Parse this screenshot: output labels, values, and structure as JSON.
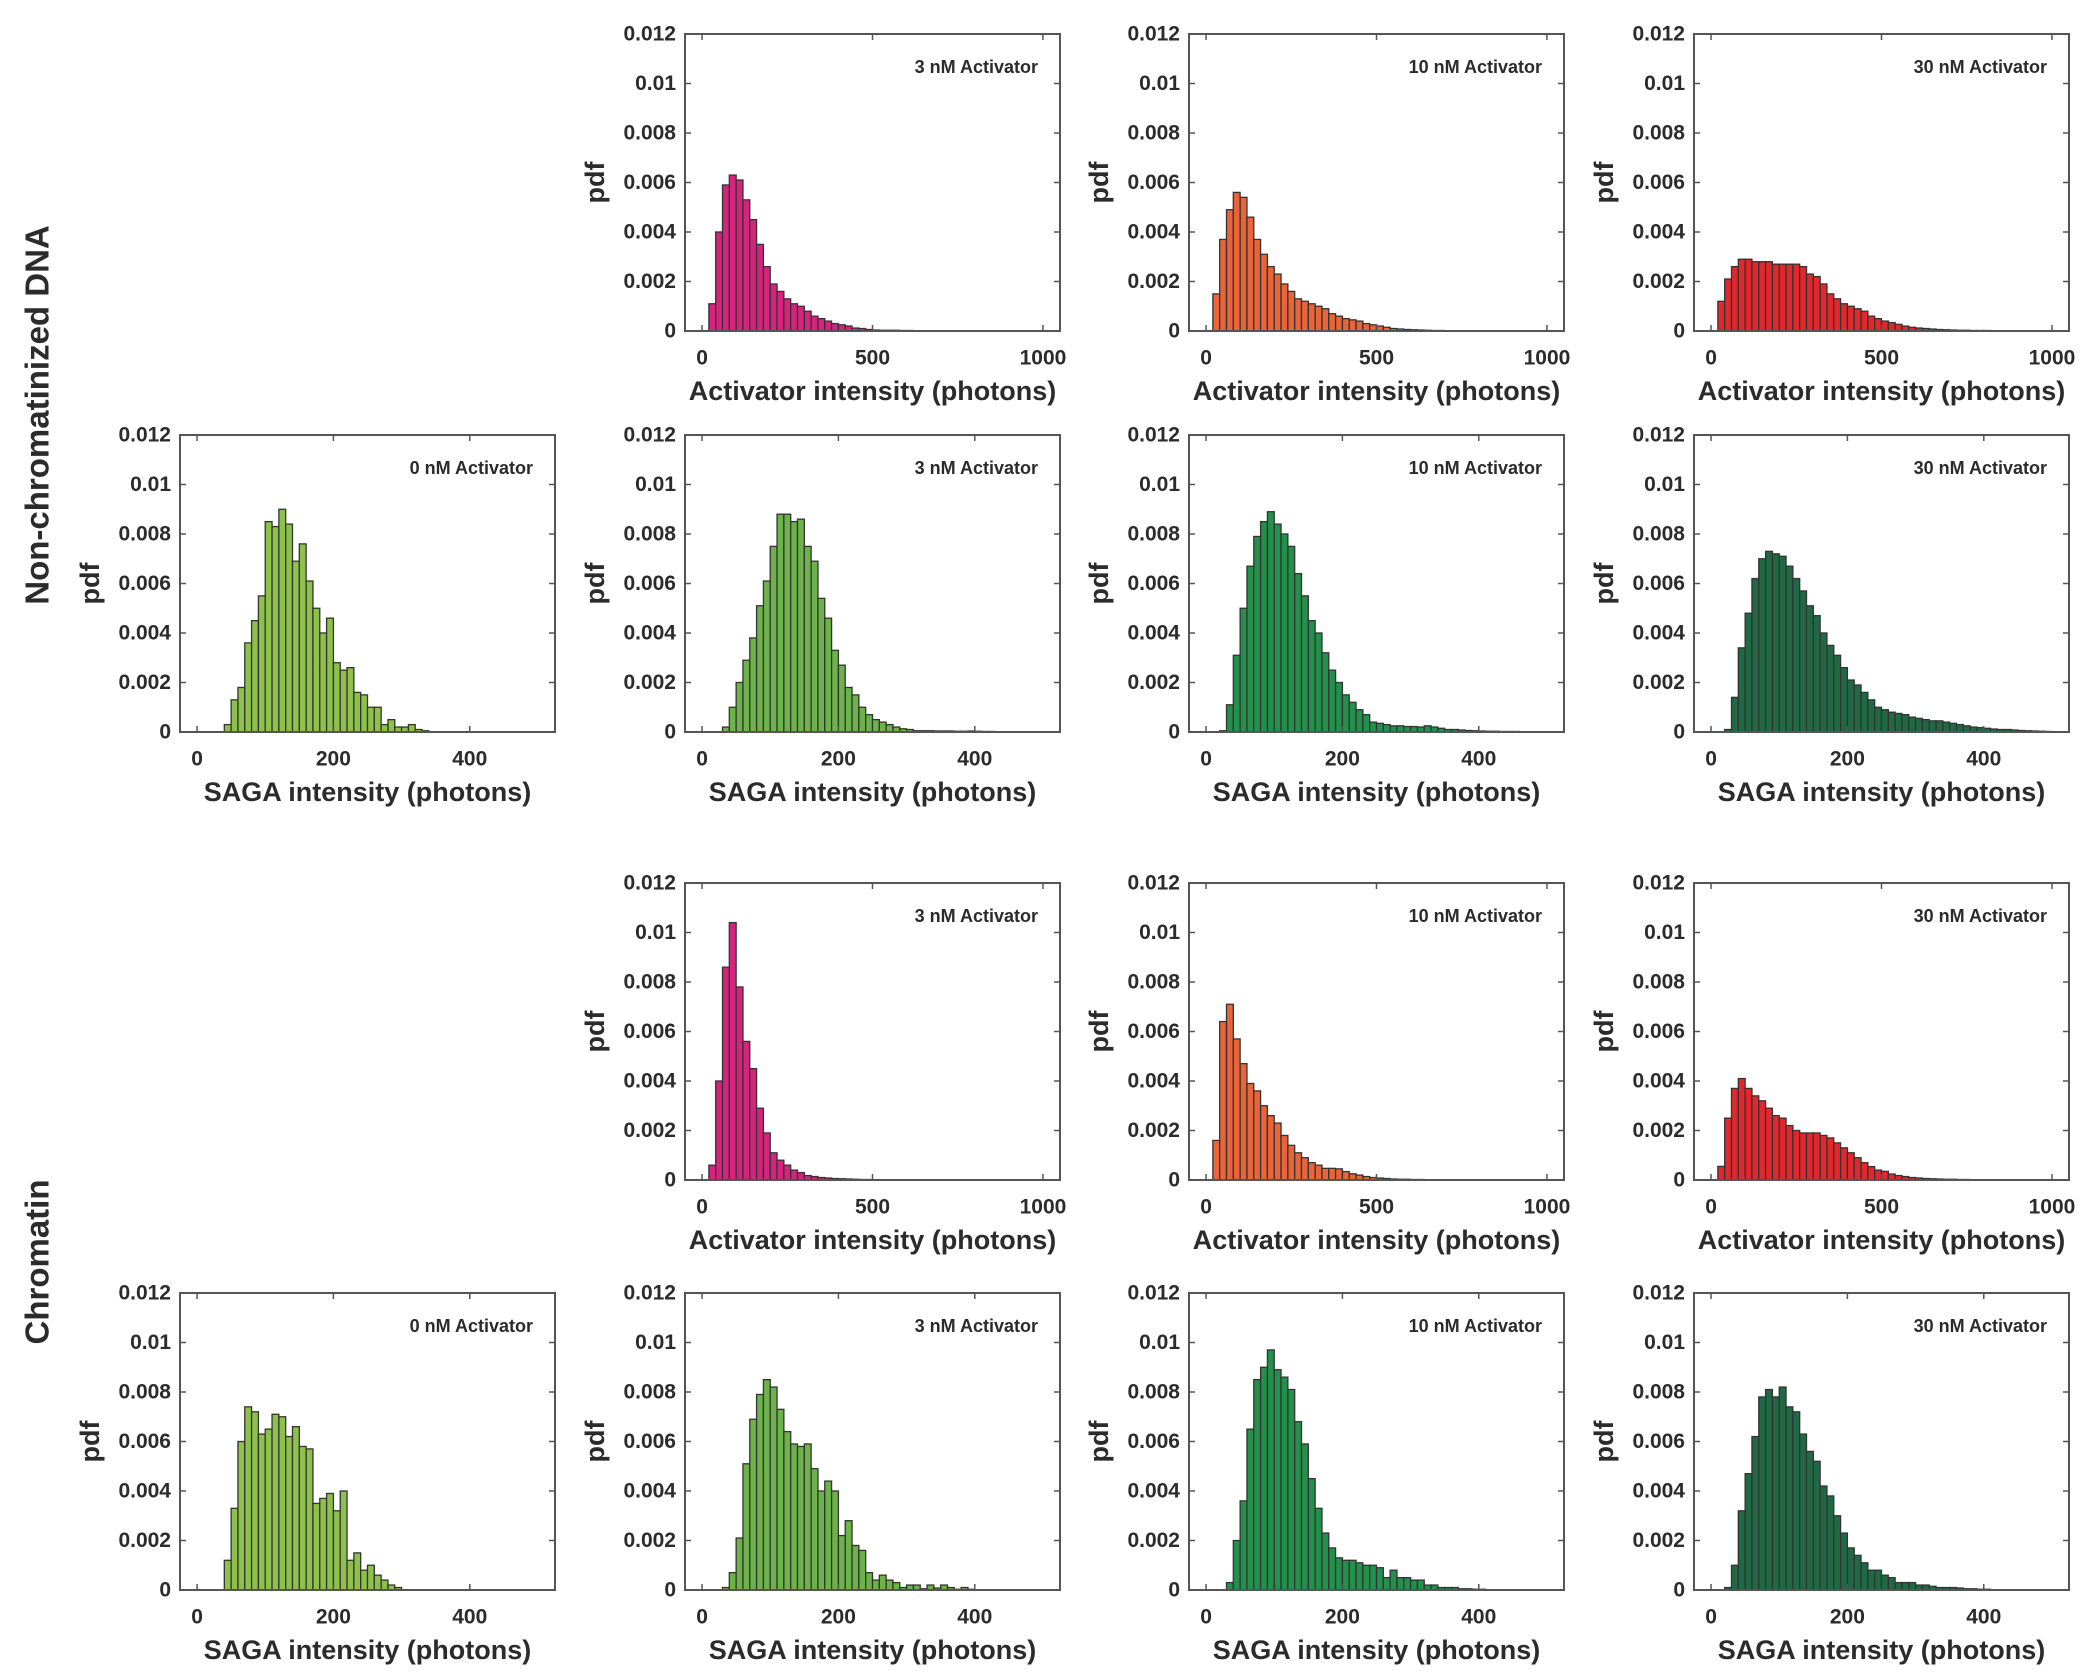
{
  "row_labels": [
    "Non-chromatinized DNA",
    "Chromatin"
  ],
  "colors": {
    "activator_3nM": "#d6237d",
    "activator_10nM": "#ea6439",
    "activator_30nM": "#e2282d",
    "saga_0nM": "#8dc14b",
    "saga_3nM": "#6cb34a",
    "saga_10nM": "#23904b",
    "saga_30nM": "#1f6a45",
    "edge": "#333333",
    "axis": "#555555"
  },
  "chart_data": [
    {
      "type": "bar",
      "group": "Non-chromatinized DNA",
      "row": 0,
      "col": 1,
      "annotation": "3 nM Activator",
      "xlabel": "Activator intensity (photons)",
      "ylabel": "pdf",
      "xlim": [
        -50,
        1050
      ],
      "ylim": [
        0,
        0.012
      ],
      "xticks": [
        "0",
        "500",
        "1000"
      ],
      "yticks": [
        "0",
        "0.002",
        "0.004",
        "0.006",
        "0.008",
        "0.01",
        "0.012"
      ],
      "bin_start": 20,
      "bin_width": 20,
      "color_key": "activator_3nM",
      "values": [
        0.0011,
        0.004,
        0.0059,
        0.0063,
        0.0061,
        0.0053,
        0.0045,
        0.0035,
        0.0026,
        0.0019,
        0.0016,
        0.0013,
        0.0011,
        0.001,
        0.0008,
        0.0006,
        0.0005,
        0.0004,
        0.0003,
        0.00025,
        0.0002,
        0.00012,
        0.0001,
        6e-05,
        4e-05,
        3e-05,
        3e-05,
        3e-05,
        2e-05,
        2e-05,
        1e-05,
        1e-05,
        1e-05
      ]
    },
    {
      "type": "bar",
      "group": "Non-chromatinized DNA",
      "row": 0,
      "col": 2,
      "annotation": "10 nM Activator",
      "xlabel": "Activator intensity (photons)",
      "ylabel": "pdf",
      "xlim": [
        -50,
        1050
      ],
      "ylim": [
        0,
        0.012
      ],
      "xticks": [
        "0",
        "500",
        "1000"
      ],
      "yticks": [
        "0",
        "0.002",
        "0.004",
        "0.006",
        "0.008",
        "0.01",
        "0.012"
      ],
      "bin_start": 20,
      "bin_width": 20,
      "color_key": "activator_10nM",
      "values": [
        0.0015,
        0.0037,
        0.0049,
        0.0056,
        0.0054,
        0.0046,
        0.0037,
        0.0031,
        0.0026,
        0.0023,
        0.0019,
        0.0016,
        0.0013,
        0.0012,
        0.0011,
        0.001,
        0.0009,
        0.0007,
        0.0006,
        0.0005,
        0.00045,
        0.0004,
        0.0003,
        0.00025,
        0.0002,
        0.00015,
        0.0001,
        8e-05,
        6e-05,
        5e-05,
        4e-05,
        3e-05,
        2e-05,
        2e-05,
        1e-05
      ]
    },
    {
      "type": "bar",
      "group": "Non-chromatinized DNA",
      "row": 0,
      "col": 3,
      "annotation": "30 nM Activator",
      "xlabel": "Activator intensity (photons)",
      "ylabel": "pdf",
      "xlim": [
        -50,
        1050
      ],
      "ylim": [
        0,
        0.012
      ],
      "xticks": [
        "0",
        "500",
        "1000"
      ],
      "yticks": [
        "0",
        "0.002",
        "0.004",
        "0.006",
        "0.008",
        "0.01",
        "0.012"
      ],
      "bin_start": 20,
      "bin_width": 20,
      "color_key": "activator_30nM",
      "values": [
        0.0012,
        0.0021,
        0.0026,
        0.0029,
        0.0029,
        0.0028,
        0.0028,
        0.0028,
        0.0027,
        0.0027,
        0.0027,
        0.0027,
        0.0026,
        0.0023,
        0.0022,
        0.0019,
        0.0015,
        0.0013,
        0.0011,
        0.001,
        0.0009,
        0.0008,
        0.0006,
        0.0005,
        0.0004,
        0.00034,
        0.00027,
        0.0002,
        0.00015,
        0.00012,
        0.0001,
        8e-05,
        6e-05,
        5e-05,
        4e-05,
        3e-05,
        3e-05,
        2e-05,
        2e-05,
        2e-05
      ]
    },
    {
      "type": "bar",
      "group": "Non-chromatinized DNA",
      "row": 1,
      "col": 0,
      "annotation": "0 nM Activator",
      "xlabel": "SAGA intensity (photons)",
      "ylabel": "pdf",
      "xlim": [
        -25,
        525
      ],
      "ylim": [
        0,
        0.012
      ],
      "xticks": [
        "0",
        "200",
        "400"
      ],
      "yticks": [
        "0",
        "0.002",
        "0.004",
        "0.006",
        "0.008",
        "0.01",
        "0.012"
      ],
      "bin_start": 40,
      "bin_width": 10,
      "color_key": "saga_0nM",
      "values": [
        0.0003,
        0.0013,
        0.0018,
        0.0036,
        0.0045,
        0.0055,
        0.0085,
        0.0083,
        0.009,
        0.0084,
        0.0069,
        0.0076,
        0.0061,
        0.005,
        0.004,
        0.0046,
        0.0028,
        0.0025,
        0.0026,
        0.0016,
        0.0015,
        0.001,
        0.001,
        0.0003,
        0.0005,
        0.0002,
        0.0002,
        0.0003,
        0.0001,
        5e-05
      ]
    },
    {
      "type": "bar",
      "group": "Non-chromatinized DNA",
      "row": 1,
      "col": 1,
      "annotation": "3 nM Activator",
      "xlabel": "SAGA intensity (photons)",
      "ylabel": "pdf",
      "xlim": [
        -25,
        525
      ],
      "ylim": [
        0,
        0.012
      ],
      "xticks": [
        "0",
        "200",
        "400"
      ],
      "yticks": [
        "0",
        "0.002",
        "0.004",
        "0.006",
        "0.008",
        "0.01",
        "0.012"
      ],
      "bin_start": 30,
      "bin_width": 10,
      "color_key": "saga_3nM",
      "values": [
        0.0002,
        0.001,
        0.002,
        0.0029,
        0.0038,
        0.0051,
        0.0061,
        0.0075,
        0.0088,
        0.0088,
        0.0085,
        0.0086,
        0.0075,
        0.0069,
        0.0054,
        0.0046,
        0.0033,
        0.0027,
        0.0018,
        0.0015,
        0.001,
        0.0007,
        0.0005,
        0.0004,
        0.0003,
        0.0002,
        0.00013,
        0.0001,
        5e-05,
        5e-05,
        5e-05,
        4e-05,
        4e-05,
        4e-05,
        3e-05,
        3e-05,
        4e-05,
        3e-05,
        2e-05,
        2e-05
      ]
    },
    {
      "type": "bar",
      "group": "Non-chromatinized DNA",
      "row": 1,
      "col": 2,
      "annotation": "10 nM Activator",
      "xlabel": "SAGA intensity (photons)",
      "ylabel": "pdf",
      "xlim": [
        -25,
        525
      ],
      "ylim": [
        0,
        0.012
      ],
      "xticks": [
        "0",
        "200",
        "400"
      ],
      "yticks": [
        "0",
        "0.002",
        "0.004",
        "0.006",
        "0.008",
        "0.01",
        "0.012"
      ],
      "bin_start": 20,
      "bin_width": 10,
      "color_key": "saga_10nM",
      "values": [
        5e-05,
        0.0011,
        0.0031,
        0.005,
        0.0067,
        0.0079,
        0.0085,
        0.0089,
        0.0084,
        0.008,
        0.0075,
        0.0064,
        0.0055,
        0.0045,
        0.004,
        0.0032,
        0.0025,
        0.002,
        0.0015,
        0.0012,
        0.0009,
        0.0007,
        0.0004,
        0.00035,
        0.0003,
        0.00025,
        0.00025,
        0.00022,
        0.00022,
        0.0002,
        0.00025,
        0.0002,
        0.00015,
        0.0001,
        0.0001,
        8e-05,
        6e-05,
        5e-05,
        4e-05,
        3e-05,
        3e-05,
        2e-05,
        2e-05,
        2e-05,
        1e-05,
        1e-05,
        1e-05,
        1e-05
      ]
    },
    {
      "type": "bar",
      "group": "Non-chromatinized DNA",
      "row": 1,
      "col": 3,
      "annotation": "30 nM Activator",
      "xlabel": "SAGA intensity (photons)",
      "ylabel": "pdf",
      "xlim": [
        -25,
        525
      ],
      "ylim": [
        0,
        0.012
      ],
      "xticks": [
        "0",
        "200",
        "400"
      ],
      "yticks": [
        "0",
        "0.002",
        "0.004",
        "0.006",
        "0.008",
        "0.01",
        "0.012"
      ],
      "bin_start": 20,
      "bin_width": 10,
      "color_key": "saga_30nM",
      "values": [
        0.0001,
        0.0014,
        0.0034,
        0.0048,
        0.0062,
        0.007,
        0.0073,
        0.0072,
        0.0071,
        0.0067,
        0.0062,
        0.0057,
        0.0051,
        0.0047,
        0.004,
        0.0035,
        0.0031,
        0.0026,
        0.0021,
        0.0019,
        0.0016,
        0.0013,
        0.001,
        0.0009,
        0.0008,
        0.00075,
        0.0007,
        0.0006,
        0.00055,
        0.0005,
        0.00045,
        0.00045,
        0.0004,
        0.00035,
        0.0003,
        0.00025,
        0.0002,
        0.00018,
        0.00015,
        0.00012,
        0.0001,
        0.0001,
        8e-05,
        6e-05,
        5e-05,
        4e-05,
        3e-05,
        2e-05
      ]
    },
    {
      "type": "bar",
      "group": "Chromatin",
      "row": 2,
      "col": 1,
      "annotation": "3 nM Activator",
      "xlabel": "Activator intensity (photons)",
      "ylabel": "pdf",
      "xlim": [
        -50,
        1050
      ],
      "ylim": [
        0,
        0.012
      ],
      "xticks": [
        "0",
        "500",
        "1000"
      ],
      "yticks": [
        "0",
        "0.002",
        "0.004",
        "0.006",
        "0.008",
        "0.01",
        "0.012"
      ],
      "bin_start": 20,
      "bin_width": 20,
      "color_key": "activator_3nM",
      "values": [
        0.0006,
        0.004,
        0.0086,
        0.0104,
        0.0078,
        0.0056,
        0.0045,
        0.0029,
        0.0019,
        0.0011,
        0.0008,
        0.0006,
        0.0004,
        0.0003,
        0.00018,
        0.00014,
        0.0001,
        8e-05,
        6e-05,
        5e-05,
        4e-05,
        3e-05,
        2e-05,
        2e-05
      ]
    },
    {
      "type": "bar",
      "group": "Chromatin",
      "row": 2,
      "col": 2,
      "annotation": "10 nM Activator",
      "xlabel": "Activator intensity (photons)",
      "ylabel": "pdf",
      "xlim": [
        -50,
        1050
      ],
      "ylim": [
        0,
        0.012
      ],
      "xticks": [
        "0",
        "500",
        "1000"
      ],
      "yticks": [
        "0",
        "0.002",
        "0.004",
        "0.006",
        "0.008",
        "0.01",
        "0.012"
      ],
      "bin_start": 20,
      "bin_width": 20,
      "color_key": "activator_10nM",
      "values": [
        0.0016,
        0.0064,
        0.0071,
        0.0057,
        0.0047,
        0.0039,
        0.0036,
        0.003,
        0.0026,
        0.0023,
        0.0018,
        0.0014,
        0.0011,
        0.0009,
        0.0007,
        0.0006,
        0.00047,
        0.00047,
        0.00045,
        0.00034,
        0.00025,
        0.0002,
        0.00014,
        0.0001,
        8e-05,
        6e-05,
        4e-05,
        3e-05,
        3e-05,
        2e-05,
        2e-05
      ]
    },
    {
      "type": "bar",
      "group": "Chromatin",
      "row": 2,
      "col": 3,
      "annotation": "30 nM Activator",
      "xlabel": "Activator intensity (photons)",
      "ylabel": "pdf",
      "xlim": [
        -50,
        1050
      ],
      "ylim": [
        0,
        0.012
      ],
      "xticks": [
        "0",
        "500",
        "1000"
      ],
      "yticks": [
        "0",
        "0.002",
        "0.004",
        "0.006",
        "0.008",
        "0.01",
        "0.012"
      ],
      "bin_start": 20,
      "bin_width": 20,
      "color_key": "activator_30nM",
      "values": [
        0.00055,
        0.0025,
        0.0037,
        0.0041,
        0.0037,
        0.0034,
        0.0032,
        0.0029,
        0.0026,
        0.0025,
        0.0022,
        0.002,
        0.0019,
        0.0019,
        0.0019,
        0.0018,
        0.0017,
        0.0015,
        0.0013,
        0.0011,
        0.0009,
        0.0007,
        0.00054,
        0.0004,
        0.00035,
        0.00024,
        0.00018,
        0.00014,
        0.0001,
        8e-05,
        6e-05,
        5e-05,
        4e-05,
        3e-05,
        3e-05,
        2e-05,
        2e-05
      ]
    },
    {
      "type": "bar",
      "group": "Chromatin",
      "row": 3,
      "col": 0,
      "annotation": "0 nM Activator",
      "xlabel": "SAGA intensity (photons)",
      "ylabel": "pdf",
      "xlim": [
        -25,
        525
      ],
      "ylim": [
        0,
        0.012
      ],
      "xticks": [
        "0",
        "200",
        "400"
      ],
      "yticks": [
        "0",
        "0.002",
        "0.004",
        "0.006",
        "0.008",
        "0.01",
        "0.012"
      ],
      "bin_start": 40,
      "bin_width": 10,
      "color_key": "saga_0nM",
      "values": [
        0.0012,
        0.0033,
        0.006,
        0.0074,
        0.0072,
        0.0063,
        0.0065,
        0.0071,
        0.007,
        0.0062,
        0.0066,
        0.0058,
        0.0057,
        0.0035,
        0.0037,
        0.0039,
        0.0032,
        0.004,
        0.0012,
        0.0015,
        0.0008,
        0.001,
        0.0006,
        0.0004,
        0.0002,
        0.0001
      ]
    },
    {
      "type": "bar",
      "group": "Chromatin",
      "row": 3,
      "col": 1,
      "annotation": "3 nM Activator",
      "xlabel": "SAGA intensity (photons)",
      "ylabel": "pdf",
      "xlim": [
        -25,
        525
      ],
      "ylim": [
        0,
        0.012
      ],
      "xticks": [
        "0",
        "200",
        "400"
      ],
      "yticks": [
        "0",
        "0.002",
        "0.004",
        "0.006",
        "0.008",
        "0.01",
        "0.012"
      ],
      "bin_start": 30,
      "bin_width": 10,
      "color_key": "saga_3nM",
      "values": [
        0.0001,
        0.0007,
        0.0021,
        0.0051,
        0.0069,
        0.0079,
        0.0085,
        0.0082,
        0.0073,
        0.0064,
        0.0059,
        0.0058,
        0.0059,
        0.0049,
        0.004,
        0.0044,
        0.004,
        0.0022,
        0.0028,
        0.0018,
        0.0016,
        0.0007,
        0.0004,
        0.0006,
        0.0004,
        0.0003,
        0.0001,
        0.0002,
        0.0002,
        5e-05,
        0.0002,
        8e-05,
        0.0002,
        0.0001,
        3e-05,
        0.0001,
        3e-05
      ]
    },
    {
      "type": "bar",
      "group": "Chromatin",
      "row": 3,
      "col": 2,
      "annotation": "10 nM Activator",
      "xlabel": "SAGA intensity (photons)",
      "ylabel": "pdf",
      "xlim": [
        -25,
        525
      ],
      "ylim": [
        0,
        0.012
      ],
      "xticks": [
        "0",
        "200",
        "400"
      ],
      "yticks": [
        "0",
        "0.002",
        "0.004",
        "0.006",
        "0.008",
        "0.01",
        "0.012"
      ],
      "bin_start": 30,
      "bin_width": 10,
      "color_key": "saga_10nM",
      "values": [
        0.0003,
        0.002,
        0.0036,
        0.0065,
        0.0085,
        0.009,
        0.0097,
        0.0089,
        0.0086,
        0.0081,
        0.0068,
        0.0059,
        0.0045,
        0.0033,
        0.0023,
        0.0017,
        0.0013,
        0.0012,
        0.0012,
        0.0011,
        0.001,
        0.001,
        0.0009,
        0.0005,
        0.0008,
        0.0005,
        0.0005,
        0.0004,
        0.0004,
        0.0002,
        0.0002,
        0.0001,
        0.0001,
        0.0001,
        5e-05,
        5e-05,
        3e-05,
        3e-05
      ]
    },
    {
      "type": "bar",
      "group": "Chromatin",
      "row": 3,
      "col": 3,
      "annotation": "30 nM Activator",
      "xlabel": "SAGA intensity (photons)",
      "ylabel": "pdf",
      "xlim": [
        -25,
        525
      ],
      "ylim": [
        0,
        0.012
      ],
      "xticks": [
        "0",
        "200",
        "400"
      ],
      "yticks": [
        "0",
        "0.002",
        "0.004",
        "0.006",
        "0.008",
        "0.01",
        "0.012"
      ],
      "bin_start": 20,
      "bin_width": 10,
      "color_key": "saga_30nM",
      "values": [
        0.0001,
        0.001,
        0.0032,
        0.0047,
        0.0062,
        0.0078,
        0.0081,
        0.0078,
        0.0082,
        0.0074,
        0.0072,
        0.0063,
        0.0056,
        0.0052,
        0.0042,
        0.0038,
        0.003,
        0.0023,
        0.0017,
        0.0014,
        0.0011,
        0.0008,
        0.0008,
        0.0006,
        0.0005,
        0.0003,
        0.0003,
        0.0003,
        0.0002,
        0.0002,
        0.00015,
        0.0001,
        0.0001,
        0.0001,
        8e-05,
        5e-05,
        5e-05,
        3e-05,
        3e-05
      ]
    }
  ]
}
